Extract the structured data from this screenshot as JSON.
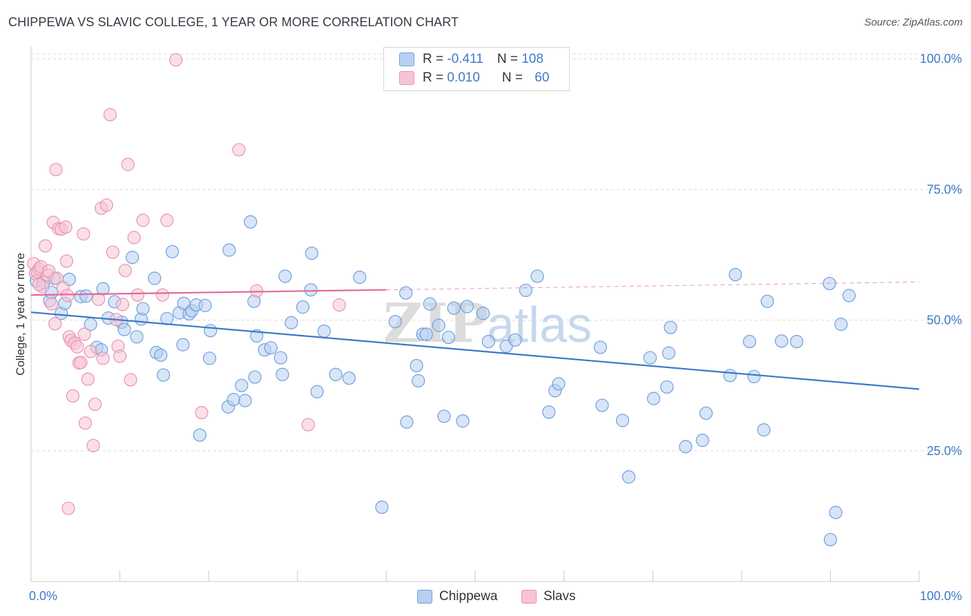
{
  "title": "CHIPPEWA VS SLAVIC COLLEGE, 1 YEAR OR MORE CORRELATION CHART",
  "source": "Source: ZipAtlas.com",
  "legend": {
    "rows": [
      {
        "r_label": "R = ",
        "r_value": "-0.411",
        "n_label": "N = ",
        "n_value": "108"
      },
      {
        "r_label": "R = ",
        "r_value": "0.010",
        "n_label": "N = ",
        "n_value": "60"
      }
    ]
  },
  "watermark": {
    "zip": "ZIP",
    "atlas": "atlas"
  },
  "colors": {
    "chippewa_fill": "#b7d0f1",
    "chippewa_stroke": "#6f9fdc",
    "chippewa_line": "#3a78c9",
    "slavs_fill": "#f6c4d4",
    "slavs_stroke": "#eb92b1",
    "slavs_line": "#e06a98",
    "tick_label": "#3f79c8",
    "grid": "#d9d9d9"
  },
  "chart_data": {
    "type": "scatter",
    "title": "CHIPPEWA VS SLAVIC COLLEGE, 1 YEAR OR MORE CORRELATION CHART",
    "xlabel": "",
    "ylabel": "College, 1 year or more",
    "xlim": [
      0,
      100
    ],
    "ylim": [
      0,
      102
    ],
    "x_tick_labels": [
      "0.0%",
      "100.0%"
    ],
    "y_ticks": [
      25,
      50,
      75,
      100
    ],
    "y_tick_labels": [
      "25.0%",
      "50.0%",
      "75.0%",
      "100.0%"
    ],
    "grid": true,
    "legend_position": "top-center",
    "series": [
      {
        "name": "Chippewa",
        "r": -0.411,
        "n": 108,
        "trend": {
          "x": [
            0,
            100
          ],
          "y": [
            51.5,
            36.8
          ],
          "dashed_from": null
        },
        "points": [
          [
            0.6,
            57.5
          ],
          [
            1.4,
            57.2
          ],
          [
            2.1,
            53.7
          ],
          [
            2.3,
            55.3
          ],
          [
            2.6,
            58.0
          ],
          [
            3.4,
            51.3
          ],
          [
            3.8,
            53.2
          ],
          [
            4.3,
            57.8
          ],
          [
            5.6,
            54.5
          ],
          [
            6.2,
            54.6
          ],
          [
            6.7,
            49.2
          ],
          [
            7.4,
            44.8
          ],
          [
            7.9,
            44.3
          ],
          [
            8.1,
            56.0
          ],
          [
            8.7,
            50.4
          ],
          [
            9.4,
            53.5
          ],
          [
            10.2,
            49.6
          ],
          [
            10.5,
            48.2
          ],
          [
            11.4,
            62.0
          ],
          [
            11.9,
            46.8
          ],
          [
            12.4,
            50.2
          ],
          [
            12.6,
            52.2
          ],
          [
            13.9,
            58.0
          ],
          [
            14.1,
            43.8
          ],
          [
            14.6,
            43.3
          ],
          [
            14.9,
            39.5
          ],
          [
            15.3,
            50.3
          ],
          [
            15.9,
            63.1
          ],
          [
            16.7,
            51.4
          ],
          [
            17.1,
            45.3
          ],
          [
            17.2,
            53.2
          ],
          [
            17.8,
            51.2
          ],
          [
            18.1,
            51.8
          ],
          [
            18.6,
            52.9
          ],
          [
            19.0,
            28.0
          ],
          [
            20.1,
            42.7
          ],
          [
            20.2,
            48.0
          ],
          [
            19.6,
            52.8
          ],
          [
            22.2,
            33.4
          ],
          [
            22.8,
            34.8
          ],
          [
            22.3,
            63.4
          ],
          [
            23.7,
            37.5
          ],
          [
            24.1,
            34.6
          ],
          [
            24.7,
            68.8
          ],
          [
            25.1,
            53.6
          ],
          [
            25.2,
            39.1
          ],
          [
            25.4,
            47.0
          ],
          [
            26.3,
            44.3
          ],
          [
            27.0,
            44.7
          ],
          [
            28.1,
            42.8
          ],
          [
            28.3,
            39.6
          ],
          [
            28.6,
            58.4
          ],
          [
            29.3,
            49.5
          ],
          [
            30.6,
            52.5
          ],
          [
            31.5,
            55.8
          ],
          [
            31.6,
            62.8
          ],
          [
            32.2,
            36.3
          ],
          [
            33.0,
            47.9
          ],
          [
            34.3,
            39.6
          ],
          [
            35.8,
            38.9
          ],
          [
            37.0,
            58.2
          ],
          [
            39.5,
            14.2
          ],
          [
            41.0,
            49.7
          ],
          [
            42.2,
            55.2
          ],
          [
            42.3,
            30.5
          ],
          [
            43.4,
            41.3
          ],
          [
            43.6,
            38.4
          ],
          [
            44.1,
            47.3
          ],
          [
            44.5,
            47.3
          ],
          [
            44.9,
            53.1
          ],
          [
            45.9,
            49.0
          ],
          [
            46.5,
            31.6
          ],
          [
            47.0,
            46.7
          ],
          [
            47.6,
            52.3
          ],
          [
            48.6,
            30.7
          ],
          [
            49.1,
            52.6
          ],
          [
            50.9,
            51.3
          ],
          [
            51.5,
            45.9
          ],
          [
            53.5,
            45.0
          ],
          [
            54.5,
            46.2
          ],
          [
            55.7,
            55.7
          ],
          [
            57.0,
            58.4
          ],
          [
            58.3,
            32.4
          ],
          [
            59.0,
            36.5
          ],
          [
            59.4,
            37.8
          ],
          [
            64.1,
            44.8
          ],
          [
            64.3,
            33.7
          ],
          [
            66.6,
            30.8
          ],
          [
            67.3,
            20.0
          ],
          [
            69.7,
            42.8
          ],
          [
            70.1,
            35.0
          ],
          [
            71.6,
            37.2
          ],
          [
            71.8,
            43.7
          ],
          [
            72.0,
            48.6
          ],
          [
            73.7,
            25.8
          ],
          [
            75.6,
            27.0
          ],
          [
            76.0,
            32.2
          ],
          [
            78.7,
            39.4
          ],
          [
            79.3,
            58.7
          ],
          [
            80.9,
            45.9
          ],
          [
            81.4,
            39.2
          ],
          [
            82.5,
            29.0
          ],
          [
            82.9,
            53.6
          ],
          [
            84.5,
            46.0
          ],
          [
            86.2,
            45.9
          ],
          [
            89.9,
            57.0
          ],
          [
            90.6,
            13.2
          ],
          [
            90.0,
            8.0
          ],
          [
            91.2,
            49.2
          ],
          [
            92.1,
            54.7
          ]
        ]
      },
      {
        "name": "Slavs",
        "r": 0.01,
        "n": 60,
        "trend": {
          "x": [
            0,
            100
          ],
          "y": [
            54.8,
            57.3
          ],
          "dashed_from": 40
        },
        "points": [
          [
            0.3,
            60.8
          ],
          [
            0.5,
            58.9
          ],
          [
            0.7,
            59.3
          ],
          [
            0.9,
            59.8
          ],
          [
            1.1,
            60.2
          ],
          [
            1.3,
            56.4
          ],
          [
            1.6,
            64.2
          ],
          [
            1.9,
            58.6
          ],
          [
            2.0,
            59.4
          ],
          [
            2.3,
            53.1
          ],
          [
            2.5,
            68.7
          ],
          [
            2.7,
            49.3
          ],
          [
            2.8,
            78.8
          ],
          [
            2.9,
            58.0
          ],
          [
            3.1,
            67.5
          ],
          [
            3.4,
            67.4
          ],
          [
            3.6,
            56.2
          ],
          [
            3.9,
            67.8
          ],
          [
            4.0,
            61.3
          ],
          [
            4.1,
            54.7
          ],
          [
            4.3,
            46.8
          ],
          [
            4.5,
            46.1
          ],
          [
            4.7,
            35.5
          ],
          [
            4.9,
            45.6
          ],
          [
            5.2,
            44.9
          ],
          [
            5.4,
            41.8
          ],
          [
            5.6,
            41.9
          ],
          [
            5.9,
            66.5
          ],
          [
            6.0,
            47.3
          ],
          [
            6.1,
            30.3
          ],
          [
            6.4,
            38.7
          ],
          [
            6.7,
            44.0
          ],
          [
            7.0,
            26.0
          ],
          [
            7.2,
            33.9
          ],
          [
            7.6,
            54.0
          ],
          [
            7.9,
            71.4
          ],
          [
            8.1,
            42.7
          ],
          [
            8.5,
            72.0
          ],
          [
            8.9,
            89.3
          ],
          [
            9.2,
            63.0
          ],
          [
            9.6,
            50.1
          ],
          [
            9.8,
            45.0
          ],
          [
            10.0,
            43.1
          ],
          [
            10.3,
            53.0
          ],
          [
            10.6,
            59.5
          ],
          [
            10.9,
            79.8
          ],
          [
            11.2,
            38.6
          ],
          [
            11.6,
            65.8
          ],
          [
            12.0,
            54.8
          ],
          [
            12.6,
            69.1
          ],
          [
            15.3,
            69.1
          ],
          [
            14.8,
            54.8
          ],
          [
            16.3,
            99.8
          ],
          [
            19.2,
            32.3
          ],
          [
            23.4,
            82.6
          ],
          [
            25.4,
            55.6
          ],
          [
            31.2,
            30.0
          ],
          [
            34.7,
            52.9
          ],
          [
            4.2,
            14.0
          ],
          [
            0.9,
            56.8
          ]
        ]
      }
    ]
  },
  "bottom_legend": {
    "items": [
      {
        "name": "Chippewa"
      },
      {
        "name": "Slavs"
      }
    ]
  }
}
